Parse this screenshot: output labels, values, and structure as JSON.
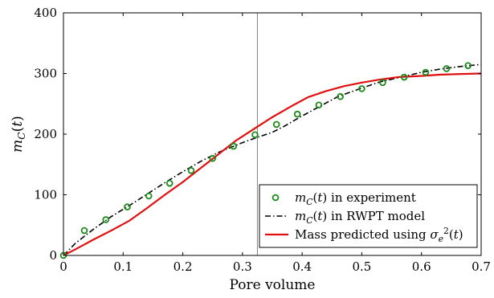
{
  "chart_data": {
    "type": "line",
    "xlabel": "Pore volume",
    "ylabel": "m_C(t)",
    "xlim": [
      0,
      0.7
    ],
    "ylim": [
      0,
      400
    ],
    "xticks": [
      0,
      0.1,
      0.2,
      0.3,
      0.4,
      0.5,
      0.6,
      0.7
    ],
    "xtick_labels": [
      "0",
      "0.1",
      "0.2",
      "0.3",
      "0.4",
      "0.5",
      "0.6",
      "0.7"
    ],
    "yticks": [
      0,
      100,
      200,
      300,
      400
    ],
    "ytick_labels": [
      "0",
      "100",
      "200",
      "300",
      "400"
    ],
    "vertical_line_x": 0.325,
    "legend_position": "bottom-right",
    "series": [
      {
        "name": "m_C(t) in experiment",
        "style": "markers",
        "color": "#1a8a1a",
        "x": [
          0.0,
          0.035,
          0.071,
          0.107,
          0.143,
          0.178,
          0.214,
          0.25,
          0.285,
          0.321,
          0.357,
          0.392,
          0.428,
          0.464,
          0.5,
          0.535,
          0.571,
          0.607,
          0.642,
          0.678
        ],
        "y": [
          0,
          41,
          59,
          80,
          98,
          119,
          140,
          160,
          180,
          199,
          216,
          233,
          248,
          262,
          275,
          285,
          294,
          302,
          308,
          313
        ]
      },
      {
        "name": "m_C(t) in RWPT model",
        "style": "dashdot",
        "color": "#000000",
        "x": [
          0.0,
          0.02,
          0.05,
          0.08,
          0.11,
          0.14,
          0.17,
          0.2,
          0.23,
          0.26,
          0.28,
          0.3,
          0.32,
          0.35,
          0.37,
          0.4,
          0.43,
          0.46,
          0.5,
          0.53,
          0.57,
          0.6,
          0.63,
          0.66,
          0.7
        ],
        "y": [
          0,
          20,
          43,
          64,
          82,
          101,
          120,
          138,
          155,
          170,
          178,
          186,
          193,
          203,
          213,
          230,
          246,
          262,
          276,
          286,
          295,
          302,
          307,
          311,
          315
        ]
      },
      {
        "name": "Mass predicted using σ_e^2(t)",
        "style": "solid",
        "color": "#e01010",
        "x": [
          0.0,
          0.02,
          0.05,
          0.08,
          0.11,
          0.14,
          0.17,
          0.2,
          0.23,
          0.26,
          0.29,
          0.32,
          0.35,
          0.38,
          0.41,
          0.44,
          0.47,
          0.5,
          0.53,
          0.56,
          0.6,
          0.63,
          0.66,
          0.7
        ],
        "y": [
          0,
          10,
          26,
          41,
          57,
          78,
          100,
          121,
          144,
          167,
          190,
          209,
          228,
          245,
          261,
          271,
          279,
          285,
          290,
          294,
          296,
          298,
          299,
          300
        ]
      }
    ]
  }
}
